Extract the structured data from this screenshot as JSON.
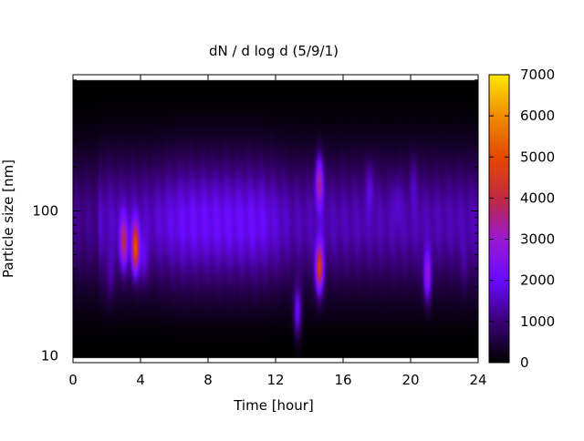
{
  "chart_data": {
    "type": "heatmap",
    "title": "dN / d log d (5/9/1)",
    "xlabel": "Time [hour]",
    "ylabel": "Particle size [nm]",
    "xlim": [
      0,
      24
    ],
    "ylim": [
      9,
      870
    ],
    "y_scale": "log",
    "x_ticks": [
      0,
      4,
      8,
      12,
      16,
      20,
      24
    ],
    "x_tick_labels": [
      "0",
      "4",
      "8",
      "12",
      "16",
      "20",
      "24"
    ],
    "y_ticks": [
      10,
      100
    ],
    "y_tick_labels": [
      "10",
      "100"
    ],
    "colorbar": {
      "range": [
        0,
        7000
      ],
      "ticks": [
        0,
        1000,
        2000,
        3000,
        4000,
        5000,
        6000,
        7000
      ],
      "tick_labels": [
        "0",
        "1000",
        "2000",
        "3000",
        "4000",
        "5000",
        "6000",
        "7000"
      ],
      "palette": "black-blue-purple-red-orange-yellow",
      "colors": [
        "#000000",
        "#3a0078",
        "#6a0aff",
        "#9a18d0",
        "#c02a40",
        "#e44a00",
        "#f08a00",
        "#ffe800"
      ]
    },
    "grid": false,
    "peaks": [
      {
        "hour": 2.2,
        "size_nm": 35,
        "value": 2400
      },
      {
        "hour": 3.0,
        "size_nm": 60,
        "value": 4300
      },
      {
        "hour": 3.7,
        "size_nm": 55,
        "value": 5600
      },
      {
        "hour": 4.2,
        "size_nm": 45,
        "value": 2600
      },
      {
        "hour": 13.3,
        "size_nm": 20,
        "value": 3600
      },
      {
        "hour": 14.6,
        "size_nm": 40,
        "value": 5700
      },
      {
        "hour": 14.6,
        "size_nm": 160,
        "value": 4300
      },
      {
        "hour": 17.6,
        "size_nm": 150,
        "value": 2500
      },
      {
        "hour": 19.2,
        "size_nm": 120,
        "value": 2200
      },
      {
        "hour": 20.2,
        "size_nm": 160,
        "value": 2300
      },
      {
        "hour": 21.0,
        "size_nm": 35,
        "value": 3900
      },
      {
        "hour": 23.2,
        "size_nm": 40,
        "value": 2100
      }
    ]
  }
}
